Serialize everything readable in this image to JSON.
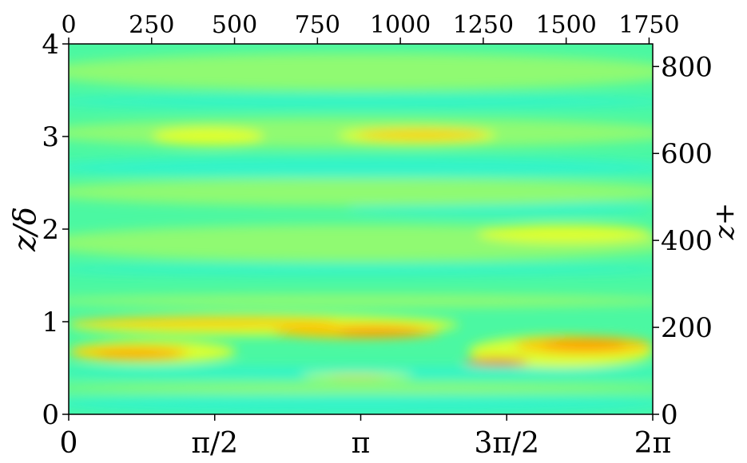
{
  "chart_data": {
    "type": "heatmap",
    "title": "",
    "colormap": "jet",
    "colors": {
      "background": "#4bf8a2",
      "cyan": "#2ef3d0",
      "green": "#9cfa6a",
      "yellow": "#e4ff2a",
      "orange": "#ffc400",
      "dark_orange": "#ff9500",
      "red": "#ff2a00"
    },
    "x_axis_bottom": {
      "label": "",
      "range": [
        0,
        6.2832
      ],
      "ticks": [
        {
          "value": 0,
          "label": "0"
        },
        {
          "value": 1.5708,
          "label": "π/2"
        },
        {
          "value": 3.1416,
          "label": "π"
        },
        {
          "value": 4.7124,
          "label": "3π/2"
        },
        {
          "value": 6.2832,
          "label": "2π"
        }
      ]
    },
    "x_axis_top": {
      "label": "",
      "range": [
        0,
        1761
      ],
      "ticks": [
        {
          "value": 0,
          "label": "0"
        },
        {
          "value": 250,
          "label": "250"
        },
        {
          "value": 500,
          "label": "500"
        },
        {
          "value": 750,
          "label": "750"
        },
        {
          "value": 1000,
          "label": "1000"
        },
        {
          "value": 1250,
          "label": "1250"
        },
        {
          "value": 1500,
          "label": "1500"
        },
        {
          "value": 1750,
          "label": "1750"
        }
      ]
    },
    "y_axis_left": {
      "label": "z/δ",
      "range": [
        0,
        4
      ],
      "ticks": [
        {
          "value": 0,
          "label": "0"
        },
        {
          "value": 1,
          "label": "1"
        },
        {
          "value": 2,
          "label": "2"
        },
        {
          "value": 3,
          "label": "3"
        },
        {
          "value": 4,
          "label": "4"
        }
      ]
    },
    "y_axis_right": {
      "label": "z+",
      "range": [
        0,
        852
      ],
      "ticks": [
        {
          "value": 0,
          "label": "0"
        },
        {
          "value": 200,
          "label": "200"
        },
        {
          "value": 400,
          "label": "400"
        },
        {
          "value": 600,
          "label": "600"
        },
        {
          "value": 800,
          "label": "800"
        }
      ]
    },
    "features": [
      {
        "level": "cyan",
        "x": [
          0,
          6.2832
        ],
        "z": [
          0.0,
          0.22
        ]
      },
      {
        "level": "green",
        "x": [
          0,
          6.2832
        ],
        "z": [
          0.22,
          0.34
        ]
      },
      {
        "level": "cyan",
        "x": [
          0,
          6.2832
        ],
        "z": [
          0.38,
          0.52
        ]
      },
      {
        "level": "green",
        "x": [
          0,
          6.2832
        ],
        "z": [
          1.15,
          1.3
        ]
      },
      {
        "level": "cyan",
        "x": [
          0,
          6.2832
        ],
        "z": [
          1.5,
          1.62
        ]
      },
      {
        "level": "green",
        "x": [
          0,
          6.2832
        ],
        "z": [
          1.65,
          2.05
        ]
      },
      {
        "level": "cyan",
        "x": [
          3.0,
          6.2832
        ],
        "z": [
          2.15,
          2.3
        ]
      },
      {
        "level": "green",
        "x": [
          0,
          6.2832
        ],
        "z": [
          2.25,
          2.55
        ]
      },
      {
        "level": "cyan",
        "x": [
          0,
          6.2832
        ],
        "z": [
          2.55,
          2.78
        ]
      },
      {
        "level": "green",
        "x": [
          0,
          6.2832
        ],
        "z": [
          2.88,
          3.2
        ]
      },
      {
        "level": "cyan",
        "x": [
          0,
          6.2832
        ],
        "z": [
          3.3,
          3.45
        ]
      },
      {
        "level": "green",
        "x": [
          0,
          6.2832
        ],
        "z": [
          3.5,
          3.9
        ]
      },
      {
        "level": "yellow",
        "x": [
          0.9,
          2.1
        ],
        "z": [
          2.9,
          3.1
        ]
      },
      {
        "level": "yellow",
        "x": [
          2.9,
          4.6
        ],
        "z": [
          2.92,
          3.1
        ]
      },
      {
        "level": "orange",
        "x": [
          3.1,
          4.5
        ],
        "z": [
          2.97,
          3.07
        ]
      },
      {
        "level": "yellow",
        "x": [
          4.4,
          6.2832
        ],
        "z": [
          1.85,
          2.05
        ]
      },
      {
        "level": "yellow",
        "x": [
          0,
          4.2
        ],
        "z": [
          0.85,
          1.08
        ]
      },
      {
        "level": "orange",
        "x": [
          0,
          2.9
        ],
        "z": [
          0.94,
          1.04
        ]
      },
      {
        "level": "orange",
        "x": [
          2.2,
          4.0
        ],
        "z": [
          0.82,
          0.97
        ]
      },
      {
        "level": "dark_orange",
        "x": [
          2.9,
          3.8
        ],
        "z": [
          0.85,
          0.94
        ]
      },
      {
        "level": "yellow",
        "x": [
          0,
          1.8
        ],
        "z": [
          0.55,
          0.8
        ]
      },
      {
        "level": "orange",
        "x": [
          0,
          1.3
        ],
        "z": [
          0.6,
          0.74
        ]
      },
      {
        "level": "dark_orange",
        "x": [
          0.3,
          1.2
        ],
        "z": [
          0.6,
          0.68
        ]
      },
      {
        "level": "yellow",
        "x": [
          2.5,
          3.7
        ],
        "z": [
          0.38,
          0.44
        ]
      },
      {
        "level": "orange",
        "x": [
          2.8,
          3.4
        ],
        "z": [
          0.39,
          0.42
        ]
      },
      {
        "level": "yellow",
        "x": [
          4.3,
          6.2832
        ],
        "z": [
          0.5,
          0.85
        ]
      },
      {
        "level": "orange",
        "x": [
          4.8,
          6.2832
        ],
        "z": [
          0.65,
          0.84
        ]
      },
      {
        "level": "dark_orange",
        "x": [
          5.1,
          6.0
        ],
        "z": [
          0.7,
          0.8
        ]
      },
      {
        "level": "red",
        "x": [
          4.25,
          4.95
        ],
        "z": [
          0.53,
          0.6
        ]
      }
    ]
  }
}
